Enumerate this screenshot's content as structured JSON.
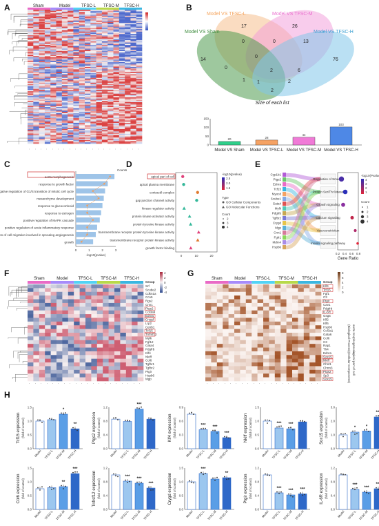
{
  "panels": {
    "A": "A",
    "B": "B",
    "C": "C",
    "D": "D",
    "E": "E",
    "F": "F",
    "G": "G",
    "H": "H"
  },
  "groups": [
    "Sham",
    "Model",
    "TFSC-L",
    "TFSC-M",
    "TFSC-H"
  ],
  "group_colors": [
    "#e96ac6",
    "#a78bfa",
    "#52d3f5",
    "#b8d94a",
    "#3ab6e0"
  ],
  "venn": {
    "set_labels": [
      "Model VS TFSC-L",
      "Model VS TFSC-M",
      "Model VS Sham",
      "Model VS TFSC-H"
    ],
    "set_colors": [
      "#f5c08e",
      "#f19ad9",
      "#4f9a4f",
      "#82c7e9"
    ],
    "counts": [
      "17",
      "26",
      "14",
      "76",
      "0",
      "0",
      "13",
      "0",
      "2",
      "1",
      "6",
      "2",
      "1",
      "2",
      "0"
    ],
    "title": "Size of each list"
  },
  "chart_data": [
    {
      "type": "bar",
      "panel": "B",
      "categories": [
        "Model VS Sham",
        "Model VS TFSC-L",
        "Model VS TFSC-M",
        "Model VS TFSC-H"
      ],
      "values": [
        20,
        28,
        44,
        103
      ],
      "value_labels": [
        "20",
        "28",
        "44",
        "103"
      ],
      "colors": [
        "#2ecf8a",
        "#f5a263",
        "#f07ad7",
        "#4e88e6"
      ],
      "ylim": [
        0,
        150
      ],
      "ytick_labels": [
        "0",
        "50",
        "100",
        "150"
      ]
    },
    {
      "type": "bar",
      "panel": "C",
      "orientation": "horizontal",
      "categories": [
        "aorta morphogenesis",
        "response to growth factor",
        "negative regulation of G1/S transition of mitotic cell cycle",
        "mesenchyme development",
        "response to glucocorticoid",
        "response to estrogen",
        "positive regulation of MAPK cascade",
        "positive regulation of acute inflammatory response",
        "regulation of cell migration involved in sprouting angiogenesis",
        "growth"
      ],
      "highlight": "aorta morphogenesis",
      "values": [
        2.9,
        2.4,
        2.2,
        2.1,
        2.0,
        1.9,
        1.8,
        1.6,
        1.5,
        1.3
      ],
      "gene_counts": [
        6,
        5,
        3,
        4,
        2,
        2,
        3,
        2,
        2,
        1
      ],
      "xlabel": "-log10(pvalue)",
      "xtick_labels": [
        "0",
        "1",
        "2",
        "3"
      ],
      "top_axis_label": "Counts"
    },
    {
      "type": "scatter",
      "panel": "D",
      "categories": [
        "apical part of cell",
        "apical plasma membrane",
        "contractil complex",
        "gap junction channel activity",
        "kinase regulator activity",
        "protein kinase activator activity",
        "protein tyrosine kinase activity",
        "transmembrane receptor protein tyrosine kinase activity",
        "transmembrane receptor protein kinase activity",
        "growth factor binding"
      ],
      "highlight": "apical part of cell",
      "values": [
        1,
        1.6,
        10.8,
        10.2,
        1.9,
        5.5,
        6.2,
        11.5,
        10.9,
        6.3
      ],
      "xtick_labels": [
        "0",
        "10",
        "20"
      ],
      "legend": {
        "color_title": "-log10(pvalue)",
        "color_ticks": [
          "2.5",
          "2.0",
          "1.5"
        ],
        "shape_title": "Type",
        "shapes": [
          "GO Cellular Components",
          "GO Molecular Functions"
        ],
        "size_title": "Count",
        "sizes": [
          "2",
          "3",
          "4"
        ]
      }
    },
    {
      "type": "scatter",
      "panel": "E",
      "left_terms": [
        "Cyp1b1",
        "Ptgs2",
        "Ednra",
        "Tcf15",
        "Myocd",
        "Scube1",
        "Gata4",
        "Mylk",
        "Pdgfrb",
        "Tgfbr2",
        "Crygd",
        "Mgp",
        "Cnn1",
        "Fgfr1",
        "Mdm4",
        "Hspb6"
      ],
      "pathways": [
        "Regulation of Smooth",
        "Protein Ser/Thr kinase",
        "Growth signaling",
        "Calcium signaling",
        "Vasoconstriction",
        "Insulin signaling pathway"
      ],
      "points": [
        [
          0.31,
          0.55
        ],
        [
          0.42,
          0.45
        ],
        [
          0.36,
          0.35
        ],
        [
          0.62,
          0.25
        ],
        [
          0.71,
          0.15
        ],
        [
          0.78,
          0.08
        ]
      ],
      "xlabel": "Gene Ratio",
      "xtick_labels": [
        "0.2",
        "0.4",
        "0.6",
        "0.8"
      ],
      "legend": {
        "color_title": "-log10(Pvalue)",
        "color_ticks": [
          "4",
          "3",
          "2",
          "1"
        ],
        "size_title": "Count",
        "sizes": [
          "1",
          "2",
          "3",
          "4"
        ]
      }
    },
    {
      "type": "bar",
      "panel": "H",
      "groups": [
        "Model",
        "TFSC-L",
        "TFSC-M",
        "TFSC-H"
      ],
      "ylabel_suffix": "(fold of control)",
      "subplots": [
        {
          "gene": "Tcf15",
          "values": [
            1.0,
            1.05,
            1.25,
            0.72
          ],
          "ylim": [
            0.0,
            1.5
          ],
          "ticks": [
            "0.0",
            "0.5",
            "1.0",
            "1.5"
          ],
          "stars": [
            "",
            "",
            "*",
            "**"
          ]
        },
        {
          "gene": "Ptgs2",
          "values": [
            1.0,
            0.92,
            1.34,
            1.0
          ],
          "ylim": [
            0.0,
            1.4
          ],
          "ticks": [
            "0.0",
            "0.4",
            "0.8",
            "1.2"
          ],
          "stars": [
            "",
            "",
            "***",
            ""
          ]
        },
        {
          "gene": "Klf4",
          "values": [
            1.0,
            0.55,
            0.5,
            0.32
          ],
          "ylim": [
            0.0,
            1.2
          ],
          "ticks": [
            "0.0",
            "0.3",
            "0.6",
            "0.9"
          ],
          "stars": [
            "",
            "***",
            "***",
            "***"
          ]
        },
        {
          "gene": "Nkiff",
          "values": [
            1.0,
            0.75,
            0.72,
            0.97
          ],
          "ylim": [
            0.0,
            1.5
          ],
          "ticks": [
            "0.0",
            "0.5",
            "1.0",
            "1.5"
          ],
          "stars": [
            "",
            "***",
            "***",
            ""
          ]
        },
        {
          "gene": "Sox15",
          "values": [
            1.0,
            1.2,
            1.28,
            2.3
          ],
          "ylim": [
            0.0,
            3.0
          ],
          "ticks": [
            "0.0",
            "1.0",
            "2.0",
            "3.0"
          ],
          "stars": [
            "",
            "*",
            "*",
            "***"
          ]
        },
        {
          "gene": "Col6",
          "values": [
            1.0,
            1.05,
            1.1,
            1.73
          ],
          "ylim": [
            0.0,
            2.0
          ],
          "ticks": [
            "0.0",
            "0.5",
            "1.0",
            "1.5"
          ],
          "stars": [
            "",
            "",
            "**",
            "***"
          ]
        },
        {
          "gene": "Tnfrsf12",
          "values": [
            1.0,
            0.82,
            0.76,
            0.62
          ],
          "ylim": [
            0.0,
            1.2
          ],
          "ticks": [
            "0.0",
            "0.4",
            "0.8",
            "1.2"
          ],
          "stars": [
            "",
            "***",
            "***",
            "***"
          ]
        },
        {
          "gene": "Crygd",
          "values": [
            1.0,
            1.3,
            1.1,
            1.15
          ],
          "ylim": [
            0.0,
            1.5
          ],
          "ticks": [
            "0.0",
            "0.5",
            "1.0",
            "1.5"
          ],
          "stars": [
            "",
            "***",
            "",
            "**"
          ]
        },
        {
          "gene": "Ptgir",
          "values": [
            1.0,
            0.48,
            0.42,
            0.45
          ],
          "ylim": [
            0.0,
            1.2
          ],
          "ticks": [
            "0.0",
            "0.4",
            "0.8",
            "1.2"
          ],
          "stars": [
            "",
            "***",
            "***",
            "***"
          ]
        },
        {
          "gene": "IL-6R",
          "values": [
            1.0,
            0.58,
            0.5,
            0.6
          ],
          "ylim": [
            0.0,
            1.2
          ],
          "ticks": [
            "0.0",
            "0.4",
            "0.8",
            "1.2"
          ],
          "stars": [
            "",
            "***",
            "***",
            "***"
          ]
        }
      ]
    }
  ],
  "heatF": {
    "genes": [
      "Srf",
      "Scube2",
      "Cdkn1a",
      "Ccn5",
      "Rgs2",
      "Cnn1",
      "Ptgs2",
      "Col3a9",
      "Ednra",
      "Crygd",
      "Lrp2",
      "Cenb1",
      "Tcf15",
      "Tnfrsf12",
      "Mylk",
      "Fgf12",
      "Gata4",
      "Pdgfrb",
      "Klf4",
      "Nkiff",
      "Col6",
      "Tgfbr1",
      "Tgfbr2",
      "Ptgir",
      "Hspb6",
      "Mgp"
    ],
    "boxed": [
      "Ptgs2",
      "Ednra",
      "Crygd",
      "Tcf15",
      "Tnfrsf12"
    ],
    "legend_ticks": [
      "4",
      "2",
      "0",
      "-2",
      "-4"
    ]
  },
  "heatG": {
    "genes": [
      "Klf4",
      "Tcf15",
      "Fgf1",
      "C3",
      "Ptgir",
      "Cav1",
      "Pdgfrb",
      "IL-6R",
      "Gsg5",
      "Klf2",
      "Klf6",
      "Hspb6",
      "Col3a1",
      "Gata6",
      "Col6",
      "C3",
      "Rap1",
      "Tlr4",
      "Ednra",
      "Sox15",
      "Nkiff",
      "Chst1",
      "Chrm3",
      "Ptgs2",
      "Sp3",
      "Sox15"
    ],
    "boxed": [
      "Klf4",
      "Tcf15",
      "Ptgir",
      "IL-6R",
      "Sox15",
      "Nkiff",
      "Ptgs2"
    ],
    "side_labels": [
      "aorta morphogenesis",
      "(Biological Process)",
      "apical part of cell",
      "(Cellular Components)"
    ],
    "legend_ticks": [
      "8",
      "6",
      "4",
      "2",
      "0"
    ]
  }
}
